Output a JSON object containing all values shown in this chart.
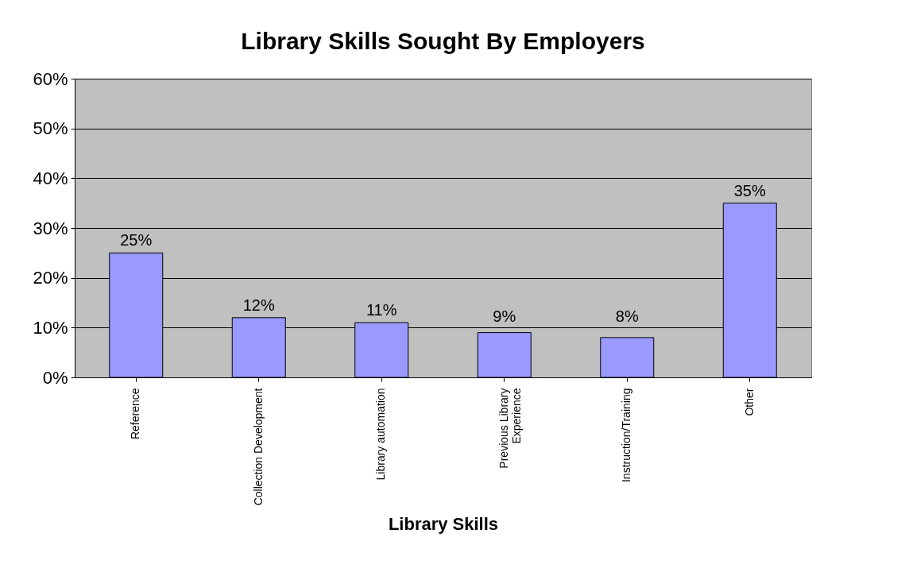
{
  "chart_data": {
    "type": "bar",
    "title": "Library Skills Sought By Employers",
    "xlabel": "Library Skills",
    "categories": [
      "Reference",
      "Collection Development",
      "Library automation",
      "Previous Library Experience",
      "Instruction/Training",
      "Other"
    ],
    "values": [
      25,
      12,
      11,
      9,
      8,
      35
    ],
    "value_labels": [
      "25%",
      "12%",
      "11%",
      "9%",
      "8%",
      "35%"
    ],
    "color": "#9999ff",
    "ylim": [
      0,
      60
    ],
    "yticks": [
      {
        "value": 0,
        "label": "0%"
      },
      {
        "value": 10,
        "label": "10%"
      },
      {
        "value": 20,
        "label": "20%"
      },
      {
        "value": 30,
        "label": "30%"
      },
      {
        "value": 40,
        "label": "40%"
      },
      {
        "value": 50,
        "label": "50%"
      },
      {
        "value": 60,
        "label": "60%"
      }
    ],
    "grid": "y"
  }
}
